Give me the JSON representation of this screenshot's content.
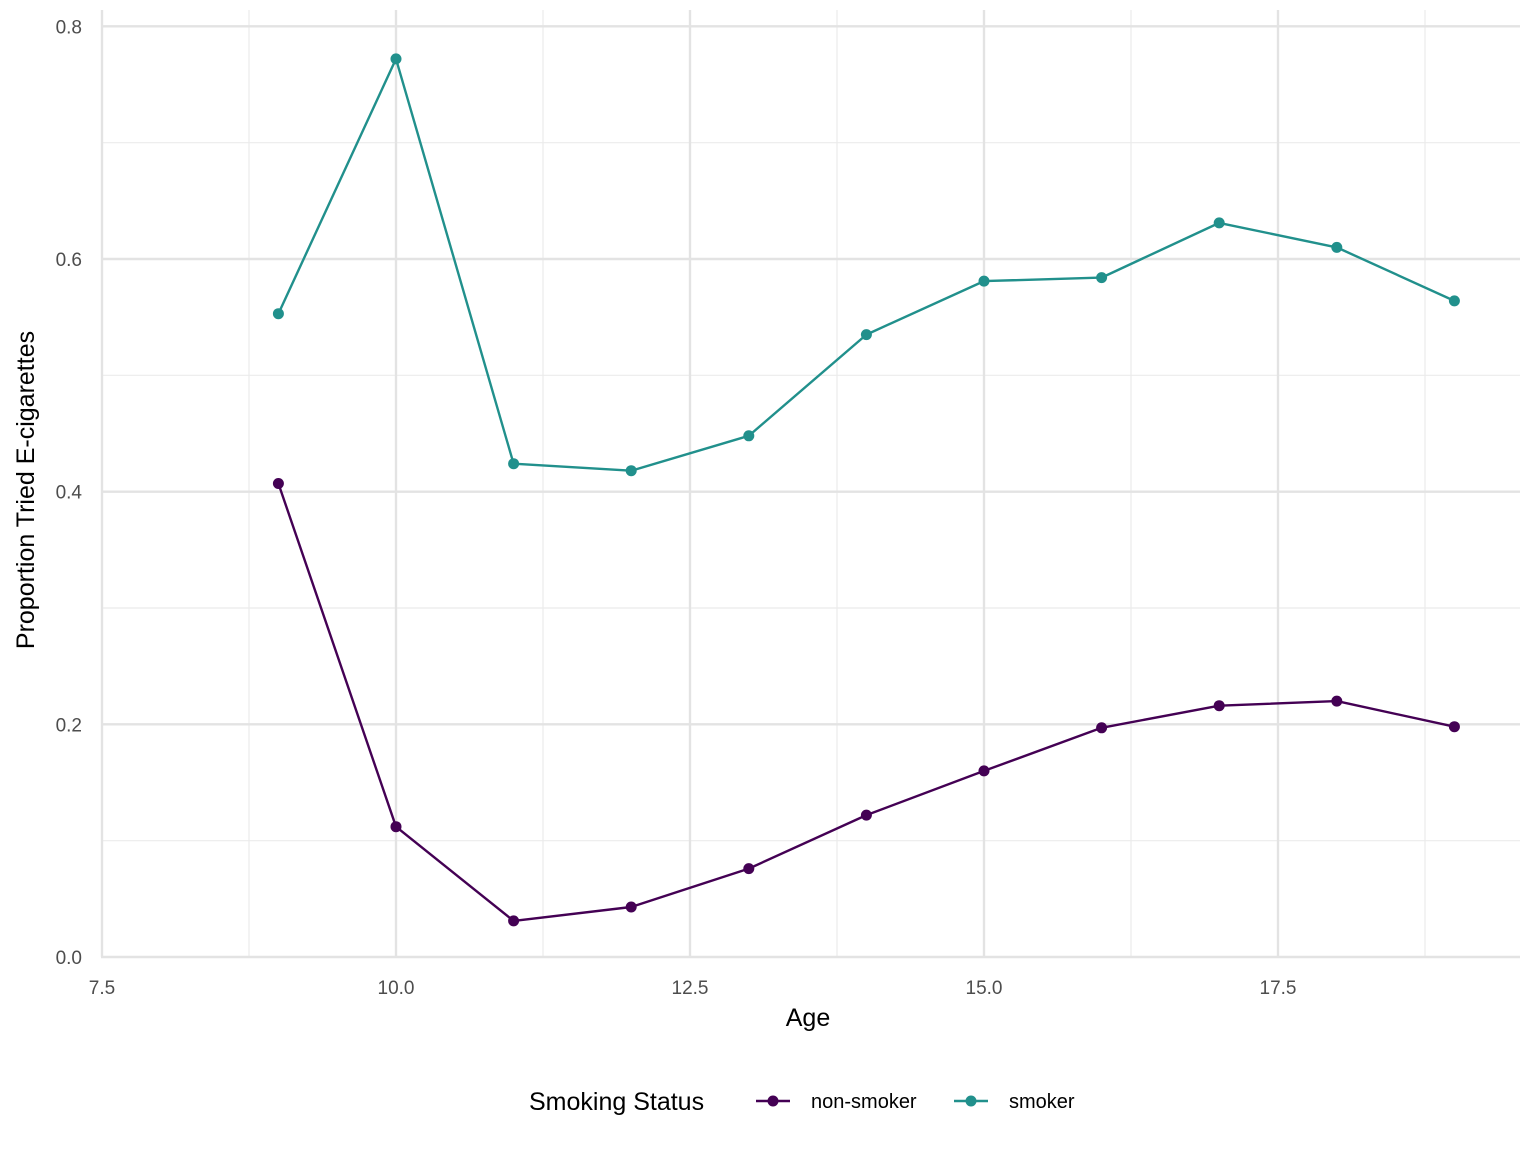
{
  "chart_data": {
    "type": "line",
    "xlabel": "Age",
    "ylabel": "Proportion Tried E-cigarettes",
    "xlim": [
      7.5,
      19.5
    ],
    "ylim": [
      0,
      0.82
    ],
    "x_ticks": [
      "7.5",
      "10.0",
      "12.5",
      "15.0",
      "17.5"
    ],
    "y_ticks": [
      "0.0",
      "0.2",
      "0.4",
      "0.6",
      "0.8"
    ],
    "grid": true,
    "legend": {
      "title": "Smoking Status",
      "position": "bottom"
    },
    "x": [
      9,
      10,
      11,
      12,
      13,
      14,
      15,
      16,
      17,
      18,
      19
    ],
    "series": [
      {
        "name": "non-smoker",
        "color": "#440154",
        "values": [
          0.407,
          0.112,
          0.031,
          0.043,
          0.076,
          0.122,
          0.16,
          0.197,
          0.216,
          0.22,
          0.198
        ]
      },
      {
        "name": "smoker",
        "color": "#21908C",
        "values": [
          0.553,
          0.772,
          0.424,
          0.418,
          0.448,
          0.535,
          0.581,
          0.584,
          0.631,
          0.61,
          0.564
        ]
      }
    ]
  }
}
